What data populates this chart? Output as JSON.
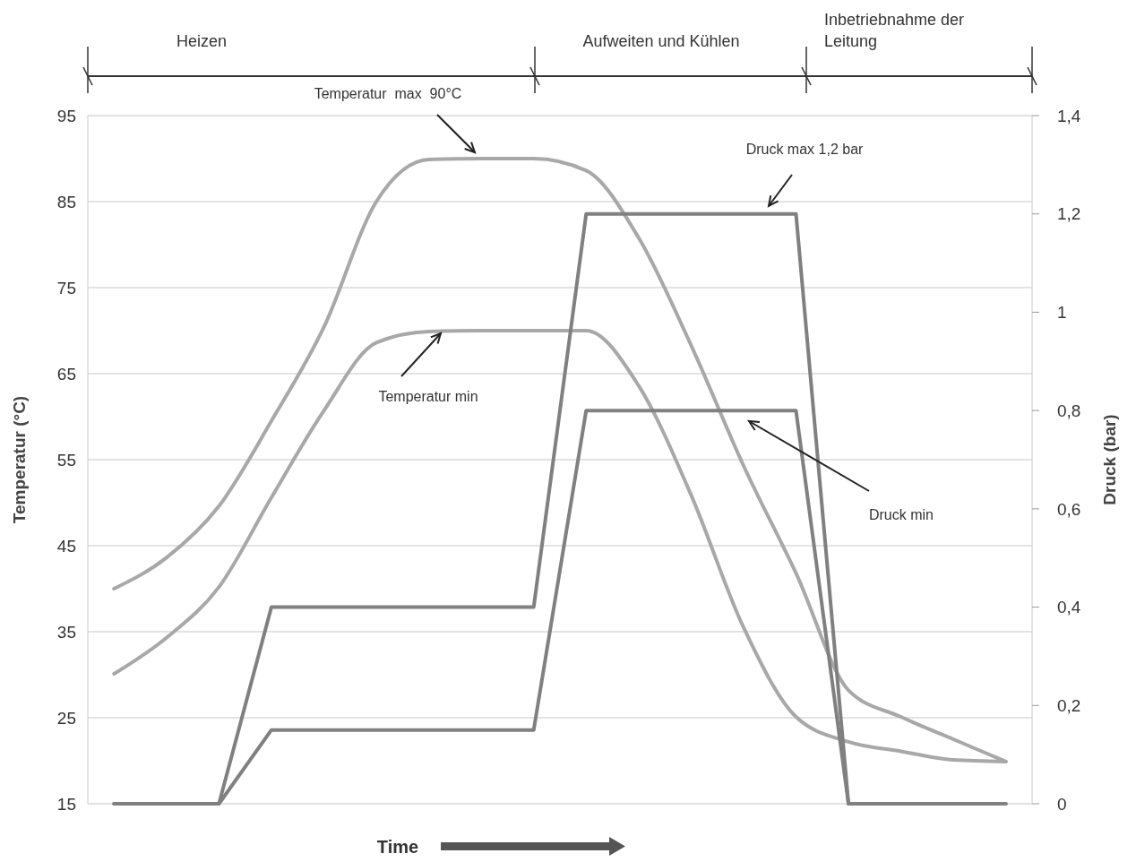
{
  "chart_data": {
    "type": "line",
    "xlabel": "Time",
    "ylabel": "Temperatur (°C)",
    "y2label": "Druck (bar)",
    "categories": [
      null,
      null,
      null,
      null,
      null,
      null,
      null,
      null,
      null,
      null,
      null,
      null,
      null,
      null,
      null,
      null,
      null,
      null
    ],
    "ylim": [
      15,
      95
    ],
    "yticks": [
      15,
      25,
      35,
      45,
      55,
      65,
      75,
      85,
      95
    ],
    "y2lim": [
      0,
      1.4
    ],
    "y2ticks": [
      0,
      {
        "value": 0.2,
        "label": "0,2"
      },
      {
        "value": 0.4,
        "label": "0,4"
      },
      {
        "value": 0.6,
        "label": "0,6"
      },
      {
        "value": 0.8,
        "label": "0,8"
      },
      1,
      {
        "value": 1.2,
        "label": "1,2"
      },
      {
        "value": 1.4,
        "label": "1,4"
      }
    ],
    "grid": "y",
    "marker": "none",
    "line_style": "solid",
    "series": [
      {
        "color": "#a8a8a8",
        "values": [
          40,
          43.6,
          49.6,
          59.5,
          70.4,
          85,
          89.9,
          90,
          90,
          88.6,
          80.8,
          68.3,
          54.3,
          41.8,
          28.2,
          25.1,
          22.5,
          19.9
        ]
      },
      {
        "color": "#a8a8a8",
        "values": [
          30.1,
          34.3,
          40.2,
          50.6,
          60.7,
          68.6,
          69.9,
          70,
          70,
          70,
          63.6,
          50.9,
          35.5,
          25.1,
          22.2,
          21.1,
          20.1,
          19.9
        ]
      },
      {
        "color": "#808080",
        "axis": "y2",
        "values": [
          0,
          0,
          0,
          0.4,
          0.4,
          0.4,
          0.4,
          0.4,
          0.4,
          1.2,
          1.2,
          1.2,
          1.2,
          1.2,
          0,
          0,
          0,
          0
        ]
      },
      {
        "color": "#808080",
        "axis": "y2",
        "values": [
          0,
          0,
          0,
          0.15,
          0.15,
          0.15,
          0.15,
          0.15,
          0.15,
          0.8,
          0.8,
          0.8,
          0.8,
          0.8,
          0,
          0,
          0,
          0
        ]
      }
    ],
    "annotations": [
      "Heizen",
      "Aufweiten und Kühlen",
      "Inbetriebnahme der Leitung",
      "Temperatur  max  90°C",
      "Temperatur min",
      "Druck max 1,2 bar",
      "Druck min"
    ]
  }
}
